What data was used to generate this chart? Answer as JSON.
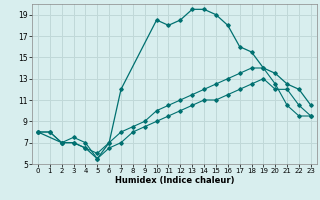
{
  "xlabel": "Humidex (Indice chaleur)",
  "bg_color": "#d8eeee",
  "grid_color": "#c0d8d8",
  "line_color": "#007070",
  "xlim": [
    -0.5,
    23.5
  ],
  "ylim": [
    5,
    20
  ],
  "xticks": [
    0,
    1,
    2,
    3,
    4,
    5,
    6,
    7,
    8,
    9,
    10,
    11,
    12,
    13,
    14,
    15,
    16,
    17,
    18,
    19,
    20,
    21,
    22,
    23
  ],
  "yticks": [
    5,
    7,
    9,
    11,
    13,
    15,
    17,
    19
  ],
  "line1_x": [
    0,
    1,
    2,
    3,
    4,
    5,
    6,
    7,
    8,
    9,
    10,
    11,
    12,
    13,
    14,
    15,
    16,
    17,
    18,
    19,
    20,
    21,
    22,
    23
  ],
  "line1_y": [
    8,
    8,
    7,
    7,
    6.5,
    6,
    7,
    8,
    8.5,
    9,
    10,
    10.5,
    11,
    11.5,
    12,
    12.5,
    13,
    13.5,
    14,
    14,
    12.5,
    10.5,
    9.5,
    9.5
  ],
  "line2_x": [
    0,
    1,
    2,
    3,
    4,
    5,
    6,
    7,
    8,
    9,
    10,
    11,
    12,
    13,
    14,
    15,
    16,
    17,
    18,
    19,
    20,
    21,
    22,
    23
  ],
  "line2_y": [
    8,
    8,
    7,
    7.5,
    7,
    5.5,
    6.5,
    7,
    8,
    8.5,
    9,
    9.5,
    10,
    10.5,
    11,
    11,
    11.5,
    12,
    12.5,
    13,
    12,
    12,
    10.5,
    9.5
  ],
  "line3_x": [
    0,
    2,
    3,
    4,
    5,
    6,
    7,
    10,
    11,
    12,
    13,
    14,
    15,
    16,
    17,
    18,
    19,
    20,
    21,
    22,
    23
  ],
  "line3_y": [
    8,
    7,
    7,
    6.5,
    5.5,
    7,
    12,
    18.5,
    18,
    18.5,
    19.5,
    19.5,
    19,
    18,
    16,
    15.5,
    14,
    13.5,
    12.5,
    12,
    10.5
  ]
}
